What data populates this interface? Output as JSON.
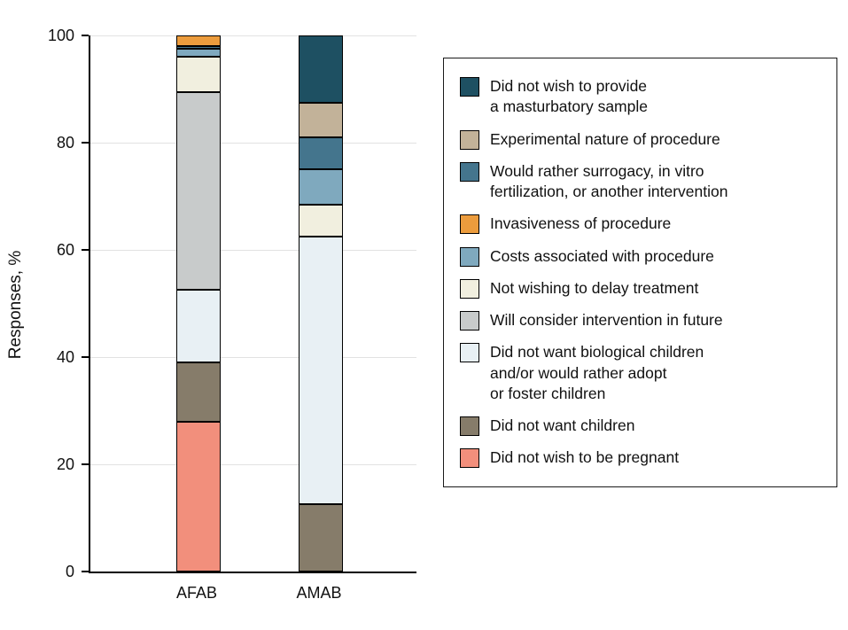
{
  "chart_data": {
    "type": "bar",
    "stacked": true,
    "title": "",
    "xlabel": "",
    "ylabel": "Responses, %",
    "ylim": [
      0,
      100
    ],
    "yticks": [
      0,
      20,
      40,
      60,
      80,
      100
    ],
    "grid": true,
    "legend_position": "right",
    "categories": [
      "AFAB",
      "AMAB"
    ],
    "series": [
      {
        "name": "Did not wish to be pregnant",
        "color": "#F28F7C",
        "values": [
          28,
          0
        ]
      },
      {
        "name": "Did not want children",
        "color": "#867C6A",
        "values": [
          11,
          12.5
        ]
      },
      {
        "name": "Did not want biological children and/or would rather adopt or foster children",
        "color": "#E8F0F4",
        "values": [
          13.5,
          50
        ]
      },
      {
        "name": "Will consider intervention in future",
        "color": "#C8CBCB",
        "values": [
          37,
          0
        ]
      },
      {
        "name": "Not wishing to delay treatment",
        "color": "#F1EFDF",
        "values": [
          6.5,
          6
        ]
      },
      {
        "name": "Costs associated with procedure",
        "color": "#7FA9BE",
        "values": [
          1.5,
          6.5
        ]
      },
      {
        "name": "Would rather surrogacy, in vitro fertilization, or another intervention",
        "color": "#44758D",
        "values": [
          0.5,
          6
        ]
      },
      {
        "name": "Invasiveness of procedure",
        "color": "#EC9C3D",
        "values": [
          2,
          0
        ]
      },
      {
        "name": "Experimental nature of procedure",
        "color": "#C2B299",
        "values": [
          0,
          6.5
        ]
      },
      {
        "name": "Did not wish to provide a masturbatory sample",
        "color": "#1E5062",
        "values": [
          0,
          12.5
        ]
      }
    ],
    "legend": [
      {
        "label": "Did not wish to provide\na masturbatory sample",
        "color": "#1E5062"
      },
      {
        "label": "Experimental nature of procedure",
        "color": "#C2B299"
      },
      {
        "label": "Would rather surrogacy, in vitro\nfertilization, or another intervention",
        "color": "#44758D"
      },
      {
        "label": "Invasiveness of procedure",
        "color": "#EC9C3D"
      },
      {
        "label": "Costs associated with procedure",
        "color": "#7FA9BE"
      },
      {
        "label": "Not wishing to delay treatment",
        "color": "#F1EFDF"
      },
      {
        "label": "Will consider intervention in future",
        "color": "#C8CBCB"
      },
      {
        "label": "Did not want biological children\nand/or would rather adopt\nor foster children",
        "color": "#E8F0F4"
      },
      {
        "label": "Did not want children",
        "color": "#867C6A"
      },
      {
        "label": "Did not wish to be pregnant",
        "color": "#F28F7C"
      }
    ]
  }
}
